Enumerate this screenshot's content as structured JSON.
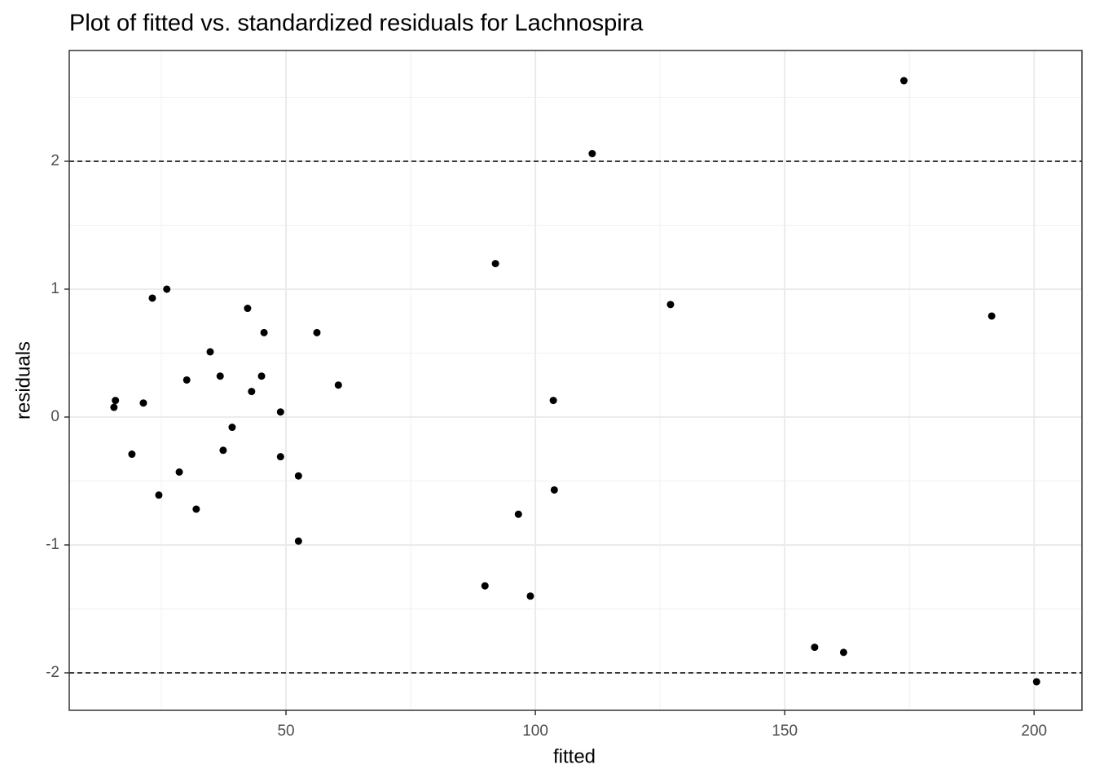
{
  "chart_data": {
    "type": "scatter",
    "title": "Plot of fitted vs. standardized residuals for Lachnospira",
    "x_label": "fitted",
    "y_label": "residuals",
    "color": "#000000",
    "xlim": [
      6.54,
      209.6
    ],
    "ylim": [
      -2.293,
      2.866
    ],
    "xticks": [
      50,
      100,
      150,
      200
    ],
    "yticks": [
      -2,
      -1,
      0,
      1,
      2
    ],
    "grid": true,
    "hlines": [
      -2,
      2
    ],
    "x": [
      15.5,
      15.8,
      19.1,
      21.4,
      23.2,
      24.5,
      26.1,
      28.6,
      30.1,
      32.0,
      34.8,
      36.8,
      37.4,
      39.2,
      42.3,
      43.1,
      45.1,
      45.6,
      48.9,
      48.9,
      52.5,
      52.5,
      56.2,
      60.5,
      89.9,
      92.0,
      96.6,
      99.0,
      103.6,
      103.8,
      111.4,
      127.1,
      156.0,
      161.8,
      173.9,
      191.5,
      200.5
    ],
    "values": [
      0.076,
      0.13,
      -0.29,
      0.11,
      0.93,
      -0.61,
      1.0,
      -0.43,
      0.29,
      -0.72,
      0.51,
      0.32,
      -0.26,
      -0.08,
      0.85,
      0.2,
      0.32,
      0.66,
      0.04,
      -0.31,
      -0.46,
      -0.97,
      0.66,
      0.25,
      -1.32,
      1.2,
      -0.76,
      -1.4,
      0.13,
      -0.57,
      2.06,
      0.88,
      -1.8,
      -1.84,
      2.63,
      0.79,
      -2.07
    ]
  }
}
